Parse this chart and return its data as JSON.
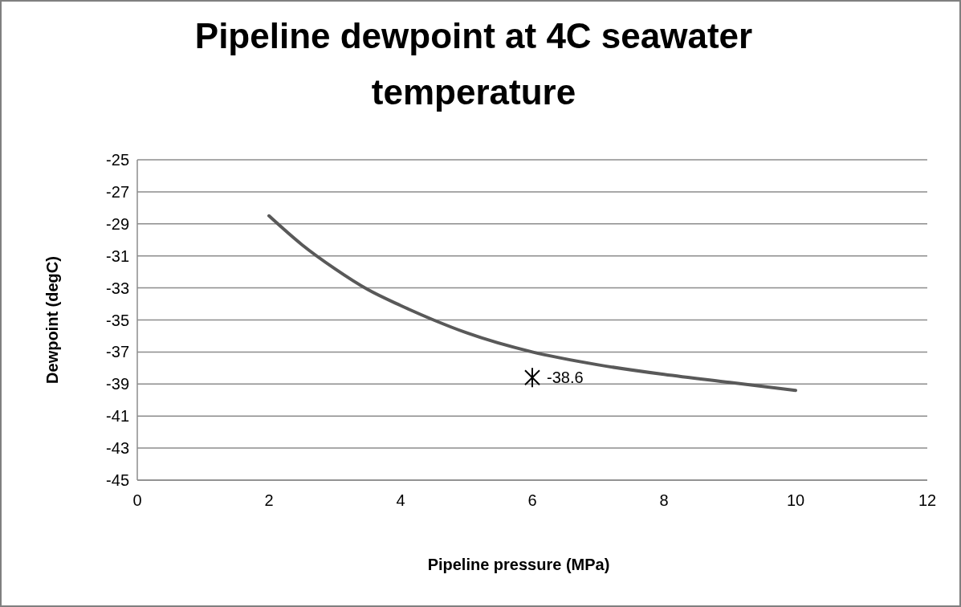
{
  "chart_data": {
    "type": "line",
    "title": "Pipeline dewpoint at 4C seawater temperature",
    "xlabel": "Pipeline pressure (MPa)",
    "ylabel": "Dewpoint (degC)",
    "series": [
      {
        "color": "#595959",
        "x": [
          2,
          2.5,
          3,
          3.5,
          4,
          4.5,
          5,
          6,
          7,
          8,
          9,
          10
        ],
        "values": [
          -28.5,
          -30.3,
          -31.8,
          -33.1,
          -34.1,
          -35.0,
          -35.8,
          -37.0,
          -37.8,
          -38.4,
          -38.9,
          -39.4
        ],
        "marker": "none",
        "line_style": "solid"
      },
      {
        "type": "scatter",
        "color": "#000000",
        "x": [
          6
        ],
        "values": [
          -38.6
        ],
        "marker": "cross",
        "value_labels": [
          "-38.6"
        ]
      }
    ],
    "xlim": [
      0,
      12
    ],
    "xticks": [
      0,
      2,
      4,
      6,
      8,
      10,
      12
    ],
    "ylim": [
      -45,
      -25
    ],
    "yticks": [
      -45,
      -43,
      -41,
      -39,
      -37,
      -35,
      -33,
      -31,
      -29,
      -27,
      -25
    ],
    "grid": "y",
    "legend": false
  }
}
